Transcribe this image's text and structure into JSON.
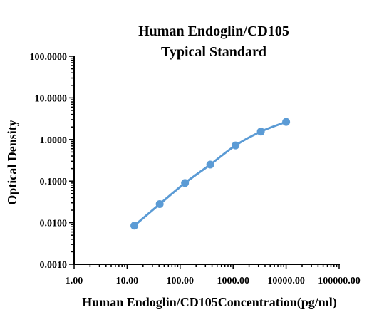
{
  "chart_data": {
    "type": "scatter",
    "title": "Human Endoglin/CD105",
    "subtitle": "Typical Standard",
    "xlabel": "Human Endoglin/CD105Concentration(pg/ml)",
    "ylabel": "Optical Density",
    "x_scale": "log",
    "y_scale": "log",
    "xlim": [
      1,
      100000
    ],
    "ylim": [
      0.001,
      100
    ],
    "x_ticks": [
      1,
      10,
      100,
      1000,
      10000,
      100000
    ],
    "x_tick_labels": [
      "1.00",
      "10.00",
      "100.00",
      "1000.00",
      "10000.00",
      "100000.00"
    ],
    "y_ticks": [
      0.001,
      0.01,
      0.1,
      1,
      10,
      100
    ],
    "y_tick_labels": [
      "0.0010",
      "0.0100",
      "0.1000",
      "1.0000",
      "10.0000",
      "100.0000"
    ],
    "grid": false,
    "series": [
      {
        "color": "#5B9BD5",
        "fit_line": true,
        "x": [
          13.7,
          41.2,
          123.5,
          370.4,
          1111.1,
          3333.3,
          10000
        ],
        "y": [
          0.0085,
          0.028,
          0.09,
          0.25,
          0.72,
          1.55,
          2.65
        ]
      }
    ]
  }
}
